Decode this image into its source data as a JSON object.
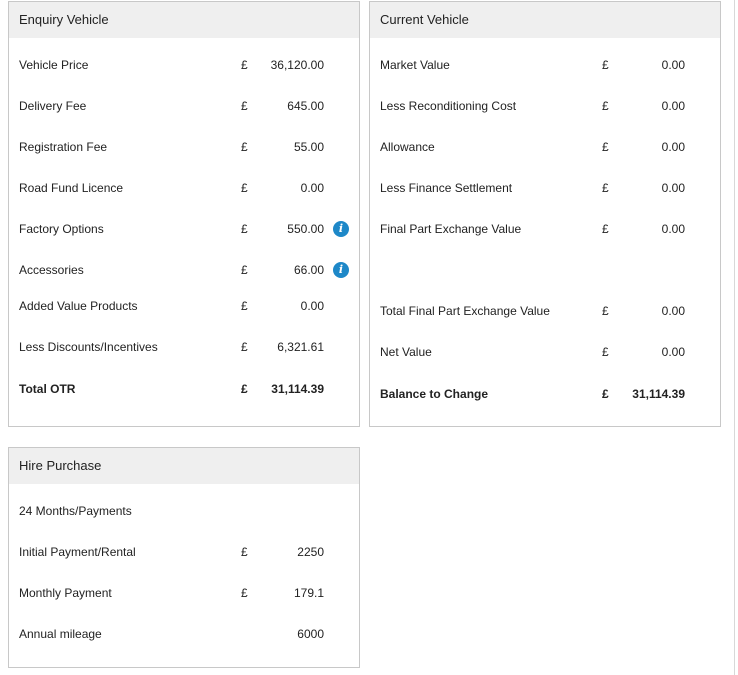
{
  "enquiry": {
    "title": "Enquiry Vehicle",
    "rows": [
      {
        "label": "Vehicle Price",
        "currency": "£",
        "value": "36,120.00"
      },
      {
        "label": "Delivery Fee",
        "currency": "£",
        "value": "645.00"
      },
      {
        "label": "Registration Fee",
        "currency": "£",
        "value": "55.00"
      },
      {
        "label": "Road Fund Licence",
        "currency": "£",
        "value": "0.00"
      },
      {
        "label": "Factory Options",
        "currency": "£",
        "value": "550.00",
        "info_icon": "info-icon"
      },
      {
        "label": "Accessories",
        "currency": "£",
        "value": "66.00",
        "info_icon": "info-icon"
      },
      {
        "label": "Added Value Products",
        "currency": "£",
        "value": "0.00"
      },
      {
        "label": "Less Discounts/Incentives",
        "currency": "£",
        "value": "6,321.61"
      },
      {
        "label": "Total OTR",
        "currency": "£",
        "value": "31,114.39"
      }
    ]
  },
  "current": {
    "title": "Current Vehicle",
    "rows": [
      {
        "label": "Market Value",
        "currency": "£",
        "value": "0.00"
      },
      {
        "label": "Less Reconditioning Cost",
        "currency": "£",
        "value": "0.00"
      },
      {
        "label": "Allowance",
        "currency": "£",
        "value": "0.00"
      },
      {
        "label": "Less Finance Settlement",
        "currency": "£",
        "value": "0.00"
      },
      {
        "label": "Final Part Exchange Value",
        "currency": "£",
        "value": "0.00"
      },
      {
        "label": "Total Final Part Exchange Value",
        "currency": "£",
        "value": "0.00"
      },
      {
        "label": "Net Value",
        "currency": "£",
        "value": "0.00"
      },
      {
        "label": "Balance to Change",
        "currency": "£",
        "value": "31,114.39"
      }
    ]
  },
  "hire": {
    "title": "Hire Purchase",
    "term": "24 Months/Payments",
    "rows": [
      {
        "label": "Initial Payment/Rental",
        "currency": "£",
        "value": "2250"
      },
      {
        "label": "Monthly Payment",
        "currency": "£",
        "value": "179.1"
      },
      {
        "label": "Annual mileage",
        "value": "6000"
      }
    ]
  },
  "theme": {
    "header_bg": "#efefef",
    "border": "#c8c8c8",
    "info_icon_color": "#1e88c8"
  }
}
